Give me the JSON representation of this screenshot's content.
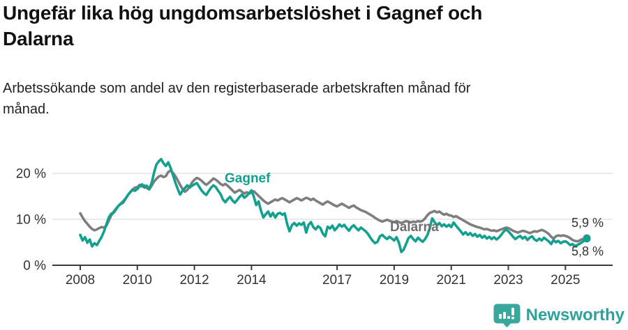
{
  "header": {
    "title": "Ungefär lika hög ungdomsarbetslöshet i Gagnef och Dalarna",
    "subtitle": "Arbetssökande som andel av den registerbaserade arbetskraften månad för månad."
  },
  "footer": {
    "brand": "Newsworthy"
  },
  "colors": {
    "gagnef": "#13a08f",
    "dalarna": "#7e7e7e",
    "axis": "#3c3c3c",
    "grid": "#e3e3e3",
    "tick_text": "#333333",
    "brand": "#2da19a"
  },
  "chart_data": {
    "type": "line",
    "title": "Ungefär lika hög ungdomsarbetslöshet i Gagnef och Dalarna",
    "subtitle": "Arbetssökande som andel av den registerbaserade arbetskraften månad för månad.",
    "unit": "%",
    "x_start_year": 2008,
    "x_step_months": 1,
    "x_end_label_month": "okt 2025",
    "xlim": [
      2008,
      2026
    ],
    "ylim": [
      0,
      24
    ],
    "grid": "horizontal",
    "x_ticks": [
      2008,
      2010,
      2012,
      2014,
      2017,
      2019,
      2021,
      2023,
      2025
    ],
    "y_ticks": [
      {
        "value": 0,
        "label": "0 %"
      },
      {
        "value": 10,
        "label": "10 %"
      },
      {
        "value": 20,
        "label": "20 %"
      }
    ],
    "series": [
      {
        "name": "Dalarna",
        "color": "#7e7e7e",
        "end_value_label": "5,9 %",
        "values": [
          11.3,
          10.4,
          9.6,
          9.0,
          8.4,
          7.9,
          7.6,
          7.8,
          8.1,
          8.3,
          8.2,
          8.6,
          9.7,
          10.8,
          11.6,
          12.3,
          12.9,
          13.4,
          13.9,
          14.5,
          15.2,
          15.9,
          16.5,
          16.9,
          17.0,
          17.5,
          17.1,
          17.4,
          16.8,
          16.5,
          17.3,
          18.2,
          18.8,
          19.3,
          19.5,
          19.2,
          19.4,
          20.3,
          20.6,
          20.1,
          19.4,
          18.5,
          17.5,
          16.6,
          16.0,
          16.4,
          17.1,
          18.0,
          18.6,
          19.0,
          18.8,
          18.4,
          17.9,
          17.5,
          17.9,
          18.4,
          18.9,
          18.6,
          18.2,
          17.7,
          17.4,
          17.7,
          17.3,
          16.8,
          16.3,
          15.8,
          16.1,
          16.4,
          16.0,
          15.6,
          15.9,
          15.6,
          15.8,
          16.1,
          15.6,
          15.1,
          14.6,
          14.1,
          13.7,
          13.4,
          13.7,
          14.0,
          14.3,
          14.1,
          14.4,
          14.6,
          14.3,
          14.0,
          13.7,
          14.0,
          14.3,
          14.6,
          14.4,
          14.1,
          14.4,
          14.7,
          14.5,
          14.2,
          14.5,
          14.1,
          13.8,
          13.5,
          13.2,
          13.6,
          13.9,
          13.6,
          13.3,
          13.0,
          12.8,
          13.1,
          13.4,
          13.1,
          12.8,
          12.5,
          12.8,
          13.0,
          12.6,
          12.3,
          12.0,
          11.8,
          11.6,
          11.3,
          11.0,
          10.7,
          10.3,
          10.0,
          9.7,
          9.5,
          9.7,
          9.9,
          9.7,
          9.5,
          9.4,
          9.6,
          9.4,
          9.2,
          9.4,
          9.6,
          9.5,
          9.3,
          9.5,
          9.4,
          9.6,
          9.5,
          9.7,
          10.2,
          10.9,
          11.4,
          11.6,
          11.8,
          11.5,
          11.7,
          11.3,
          11.0,
          11.2,
          10.9,
          10.8,
          10.5,
          10.7,
          10.4,
          10.1,
          9.8,
          9.5,
          9.2,
          8.9,
          8.7,
          8.5,
          8.3,
          8.2,
          8.0,
          7.8,
          7.9,
          7.7,
          7.5,
          7.6,
          7.4,
          7.6,
          7.8,
          8.0,
          8.2,
          8.1,
          7.8,
          7.5,
          7.3,
          7.1,
          7.3,
          7.5,
          7.4,
          7.2,
          7.0,
          7.2,
          7.4,
          7.3,
          7.5,
          7.7,
          7.5,
          7.2,
          6.8,
          6.2,
          5.8,
          6.3,
          6.5,
          6.4,
          6.5,
          6.4,
          6.2,
          5.9,
          5.5,
          5.3,
          5.2,
          5.4,
          5.7,
          5.6,
          5.9
        ]
      },
      {
        "name": "Gagnef",
        "color": "#13a08f",
        "end_value_label": "5,8 %",
        "values": [
          6.6,
          5.4,
          6.1,
          4.9,
          5.6,
          4.1,
          4.8,
          4.4,
          5.3,
          6.2,
          7.4,
          8.9,
          10.4,
          11.2,
          11.4,
          12.1,
          12.9,
          13.3,
          13.6,
          14.4,
          15.3,
          15.9,
          16.4,
          16.2,
          16.6,
          17.2,
          17.6,
          16.9,
          17.3,
          16.6,
          17.9,
          20.1,
          21.9,
          22.6,
          23.1,
          22.2,
          21.6,
          22.4,
          21.2,
          19.6,
          18.0,
          16.6,
          15.4,
          16.2,
          16.8,
          17.4,
          16.9,
          17.3,
          17.6,
          17.9,
          17.1,
          16.3,
          15.7,
          15.3,
          16.1,
          16.9,
          17.4,
          17.0,
          16.2,
          15.5,
          14.3,
          13.7,
          14.4,
          14.9,
          14.1,
          13.6,
          14.2,
          14.9,
          15.4,
          14.7,
          15.1,
          15.7,
          16.3,
          14.9,
          13.1,
          13.9,
          11.9,
          10.4,
          11.1,
          11.7,
          10.6,
          11.4,
          10.4,
          11.2,
          11.4,
          11.0,
          11.3,
          9.0,
          7.4,
          8.7,
          9.2,
          8.6,
          9.1,
          8.8,
          9.3,
          7.1,
          8.8,
          9.4,
          8.3,
          7.8,
          8.5,
          8.1,
          6.9,
          6.3,
          8.4,
          8.0,
          8.6,
          7.6,
          8.2,
          8.9,
          8.4,
          8.8,
          8.1,
          7.5,
          8.3,
          8.7,
          8.1,
          7.6,
          8.2,
          7.8,
          7.4,
          6.8,
          6.0,
          5.3,
          4.8,
          5.1,
          6.3,
          6.6,
          6.1,
          5.7,
          6.2,
          5.8,
          5.4,
          6.1,
          4.9,
          2.9,
          3.4,
          4.6,
          5.9,
          6.4,
          5.7,
          5.2,
          6.0,
          5.5,
          5.1,
          5.7,
          6.6,
          8.1,
          10.2,
          9.4,
          8.7,
          9.2,
          8.5,
          8.9,
          8.4,
          8.8,
          8.3,
          9.3,
          8.6,
          8.0,
          7.4,
          6.7,
          7.2,
          6.6,
          7.0,
          6.4,
          6.8,
          6.2,
          6.6,
          6.0,
          6.4,
          5.8,
          6.2,
          5.7,
          6.1,
          5.6,
          6.0,
          6.6,
          7.3,
          7.8,
          7.4,
          6.8,
          6.2,
          5.7,
          6.1,
          6.4,
          5.8,
          6.2,
          5.5,
          6.0,
          6.3,
          5.6,
          5.3,
          5.8,
          5.4,
          6.0,
          5.6,
          5.2,
          4.6,
          5.5,
          5.0,
          5.3,
          4.8,
          5.1,
          5.2,
          4.9,
          4.4,
          4.6,
          4.2,
          4.4,
          4.7,
          5.0,
          5.4,
          5.8
        ]
      }
    ],
    "annotations": {
      "gagnef_label": "Gagnef",
      "dalarna_label": "Dalarna",
      "end_label_dalarna": "5,9 %",
      "end_label_gagnef": "5,8 %"
    },
    "legend_position": "inline-labels"
  }
}
